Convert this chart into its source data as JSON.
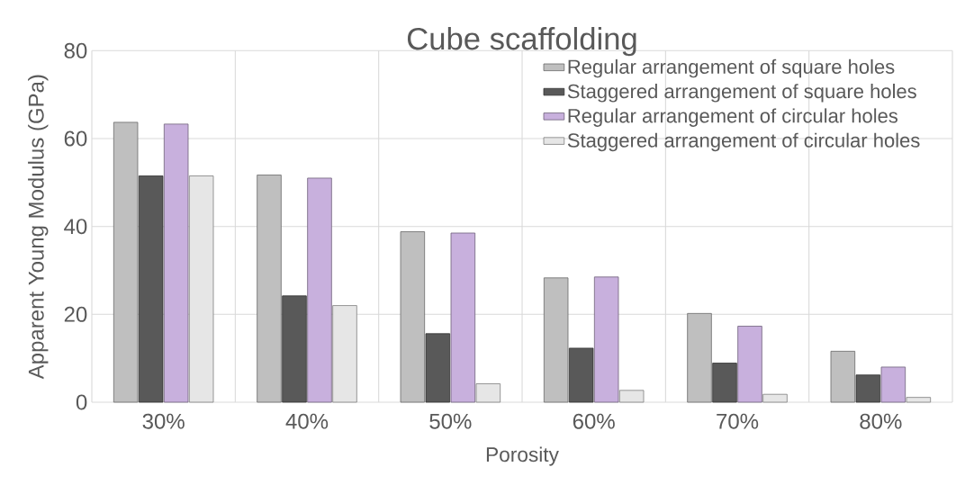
{
  "chart_data": {
    "type": "bar",
    "title": "Cube scaffolding",
    "xlabel": "Porosity",
    "ylabel": "Apparent Young Modulus (GPa)",
    "categories": [
      "30%",
      "40%",
      "50%",
      "60%",
      "70%",
      "80%"
    ],
    "series": [
      {
        "name": "Regular arrangement of square holes",
        "color": "#bfbfbf",
        "values": [
          63.7,
          51.7,
          38.8,
          28.3,
          20.2,
          11.6
        ]
      },
      {
        "name": "Staggered arrangement of square holes",
        "color": "#595959",
        "values": [
          51.5,
          24.2,
          15.6,
          12.3,
          8.9,
          6.2
        ]
      },
      {
        "name": "Regular arrangement of circular holes",
        "color": "#c8b0dd",
        "values": [
          63.3,
          51.0,
          38.5,
          28.5,
          17.3,
          8.0
        ]
      },
      {
        "name": "Staggered  arrangement of circular holes",
        "color": "#e6e6e6",
        "values": [
          51.5,
          22.0,
          4.2,
          2.7,
          1.8,
          1.1
        ]
      }
    ],
    "ylim": [
      0,
      80
    ],
    "yticks": [
      0,
      20,
      40,
      60,
      80
    ],
    "grid": true,
    "legend": "top right"
  }
}
